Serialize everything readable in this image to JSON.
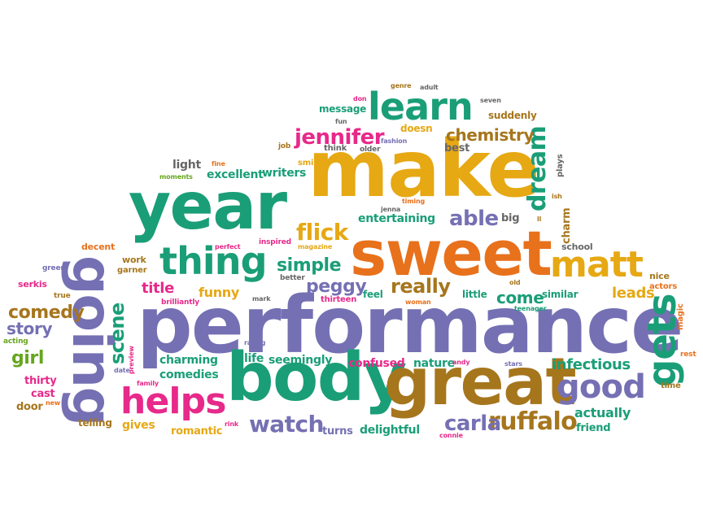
{
  "palette": {
    "teal": "#1a9e77",
    "gold": "#e6a813",
    "orange": "#e8711c",
    "purple": "#7570b3",
    "pink": "#e7298a",
    "olive": "#a6761d",
    "green": "#66a61e",
    "gray": "#666666"
  },
  "words": [
    "performance",
    "make",
    "body",
    "great",
    "year",
    "sweet",
    "going",
    "learn",
    "thing",
    "helps",
    "gets",
    "matt",
    "good",
    "ruffalo",
    "jennifer",
    "dream",
    "flick",
    "chemistry",
    "watch",
    "really",
    "able",
    "simple",
    "carla",
    "comedy",
    "scene",
    "peggy",
    "story",
    "infectious",
    "girl",
    "funny",
    "come",
    "leads",
    "title",
    "actually",
    "delightful",
    "excellent",
    "writers",
    "entertaining",
    "charming",
    "confused",
    "life",
    "seemingly",
    "comedies",
    "nature",
    "romantic",
    "gives",
    "turns",
    "friend",
    "thirty",
    "cast",
    "door",
    "telling",
    "charm",
    "light",
    "message",
    "suddenly",
    "doesn",
    "best",
    "big",
    "school",
    "little",
    "similar",
    "feel",
    "nice",
    "actors",
    "magic",
    "rest",
    "time",
    "work",
    "decent",
    "serkis",
    "garner",
    "greer",
    "true",
    "acting",
    "mark",
    "better",
    "thirteen",
    "woman",
    "brilliantly",
    "rating",
    "date",
    "preview",
    "family",
    "new",
    "stars",
    "andy",
    "connie",
    "rink",
    "teenager",
    "old",
    "perfect",
    "inspired",
    "magazine",
    "moments",
    "fine",
    "smile",
    "job",
    "fun",
    "fashion",
    "think",
    "older",
    "don",
    "genre",
    "adult",
    "seven",
    "timing",
    "jenna",
    "plays",
    "ish",
    "ll"
  ]
}
